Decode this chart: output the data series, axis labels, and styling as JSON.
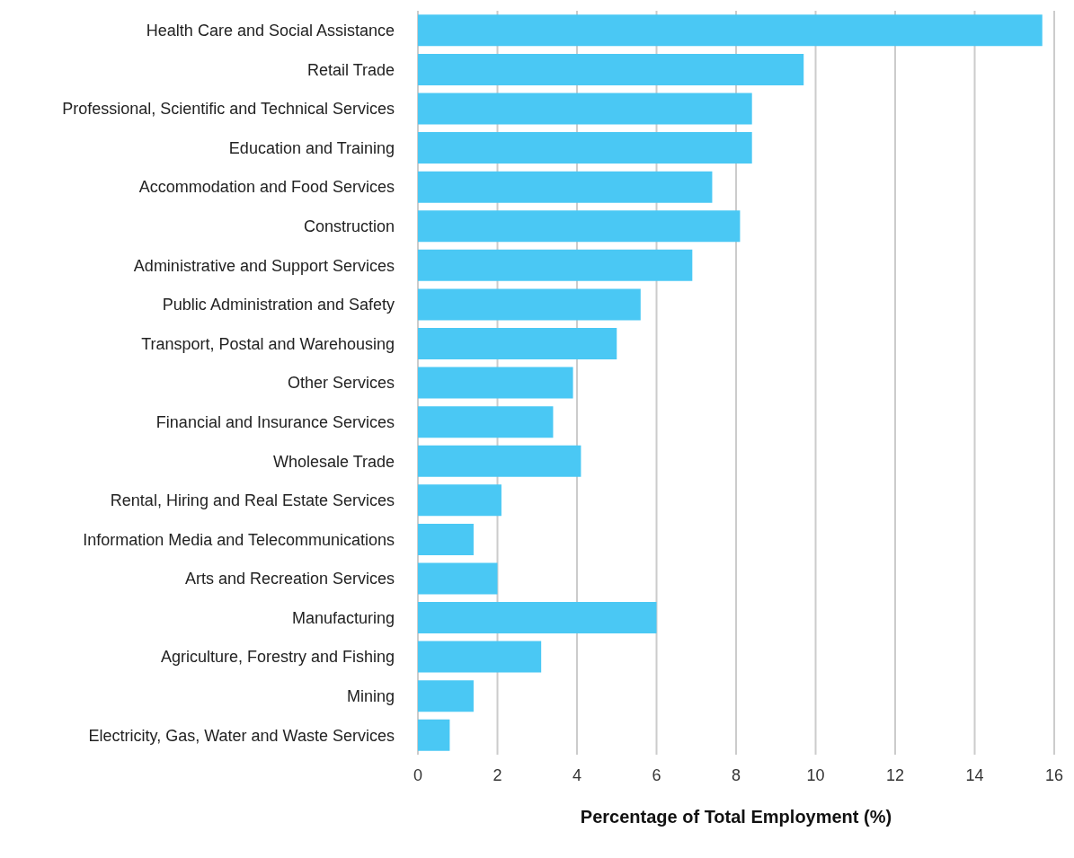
{
  "chart_data": {
    "type": "bar",
    "orientation": "horizontal",
    "xlabel": "Percentage of Total Employment (%)",
    "categories": [
      "Health Care and Social Assistance",
      "Retail Trade",
      "Professional, Scientific and Technical Services",
      "Education and Training",
      "Accommodation and Food Services",
      "Construction",
      "Administrative and Support Services",
      "Public Administration and Safety",
      "Transport, Postal and Warehousing",
      "Other Services",
      "Financial and Insurance Services",
      "Wholesale Trade",
      "Rental, Hiring and Real Estate Services",
      "Information Media and Telecommunications",
      "Arts and Recreation Services",
      "Manufacturing",
      "Agriculture, Forestry and Fishing",
      "Mining",
      "Electricity, Gas, Water and Waste Services"
    ],
    "values": [
      15.7,
      9.7,
      8.4,
      8.4,
      7.4,
      8.1,
      6.9,
      5.6,
      5.0,
      3.9,
      3.4,
      4.1,
      2.1,
      1.4,
      2.0,
      6.0,
      3.1,
      1.4,
      0.8
    ],
    "color": "#4ac8f4",
    "xlim": [
      0,
      16
    ],
    "xticks": [
      0,
      2,
      4,
      6,
      8,
      10,
      12,
      14,
      16
    ],
    "grid": "x"
  }
}
